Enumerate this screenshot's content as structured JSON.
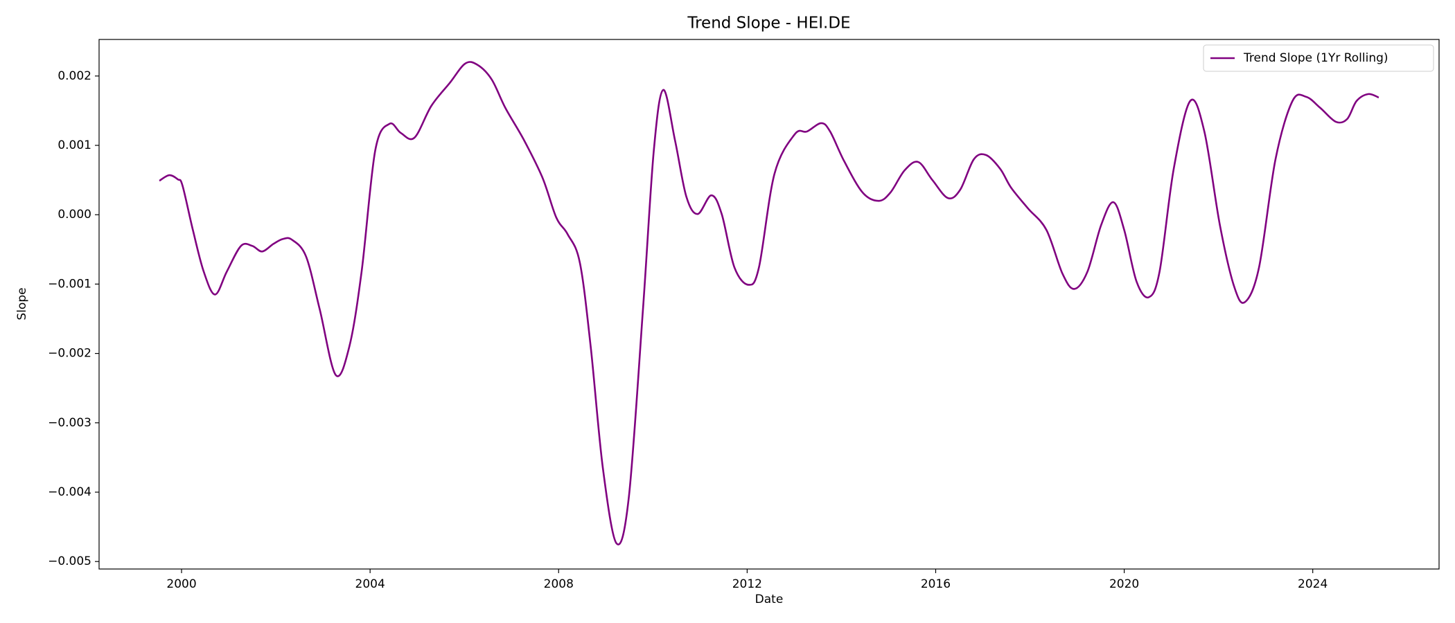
{
  "chart_data": {
    "type": "line",
    "title": "Trend Slope - HEI.DE",
    "x_label": "Date",
    "y_label": "Slope",
    "x": [
      1999.53,
      1999.74,
      1999.92,
      2000.02,
      2000.24,
      2000.47,
      2000.71,
      2000.96,
      2001.26,
      2001.5,
      2001.71,
      2001.95,
      2002.15,
      2002.34,
      2002.64,
      2002.93,
      2003.27,
      2003.56,
      2003.82,
      2004.11,
      2004.41,
      2004.65,
      2004.94,
      2005.3,
      2005.69,
      2006.02,
      2006.28,
      2006.58,
      2006.87,
      2007.27,
      2007.66,
      2007.95,
      2008.19,
      2008.45,
      2008.68,
      2008.94,
      2009.23,
      2009.49,
      2009.79,
      2010.02,
      2010.22,
      2010.47,
      2010.71,
      2010.95,
      2011.24,
      2011.46,
      2011.73,
      2012.03,
      2012.25,
      2012.58,
      2013.01,
      2013.27,
      2013.57,
      2013.76,
      2014.06,
      2014.45,
      2014.79,
      2015.04,
      2015.34,
      2015.63,
      2015.93,
      2016.26,
      2016.52,
      2016.81,
      2017.07,
      2017.37,
      2017.6,
      2017.96,
      2018.35,
      2018.69,
      2018.94,
      2019.22,
      2019.51,
      2019.77,
      2020.0,
      2020.26,
      2020.52,
      2020.75,
      2021.05,
      2021.4,
      2021.7,
      2022.03,
      2022.33,
      2022.56,
      2022.86,
      2023.21,
      2023.57,
      2023.86,
      2024.16,
      2024.49,
      2024.73,
      2024.93,
      2025.18,
      2025.4
    ],
    "series": [
      {
        "name": "Trend Slope (1Yr Rolling)",
        "color": "#800080",
        "values": [
          0.00049,
          0.00057,
          0.00051,
          0.00042,
          -0.00022,
          -0.00082,
          -0.00115,
          -0.00082,
          -0.00045,
          -0.00045,
          -0.00053,
          -0.00042,
          -0.00035,
          -0.00036,
          -0.0006,
          -0.00136,
          -0.00231,
          -0.0019,
          -0.00082,
          0.00093,
          0.00131,
          0.00118,
          0.00111,
          0.00157,
          0.0019,
          0.00218,
          0.00216,
          0.00195,
          0.00154,
          0.00107,
          0.00053,
          -4e-05,
          -0.00028,
          -0.00069,
          -0.0019,
          -0.00366,
          -0.00474,
          -0.00407,
          -0.00136,
          0.00093,
          0.0018,
          0.00107,
          0.00026,
          1e-05,
          0.00028,
          1e-05,
          -0.00076,
          -0.00101,
          -0.00076,
          0.00059,
          0.00116,
          0.0012,
          0.00132,
          0.0012,
          0.00077,
          0.00032,
          0.0002,
          0.00032,
          0.00064,
          0.00076,
          0.0005,
          0.00024,
          0.00036,
          0.0008,
          0.00086,
          0.00066,
          0.00039,
          9e-05,
          -0.00022,
          -0.00085,
          -0.00107,
          -0.00082,
          -0.00015,
          0.00018,
          -0.00022,
          -0.00096,
          -0.00119,
          -0.00082,
          0.00066,
          0.00164,
          0.0012,
          -0.00015,
          -0.00103,
          -0.00126,
          -0.00076,
          0.0008,
          0.00164,
          0.0017,
          0.00154,
          0.00134,
          0.00138,
          0.00164,
          0.00174,
          0.00169
        ]
      }
    ],
    "xlim": [
      1998.25,
      2026.68
    ],
    "xticks": [
      2000,
      2004,
      2008,
      2012,
      2016,
      2020,
      2024
    ],
    "ylim": [
      -0.005108,
      0.002527
    ],
    "yticks": [
      {
        "value": -0.005,
        "label": "−0.005"
      },
      {
        "value": -0.004,
        "label": "−0.004"
      },
      {
        "value": -0.003,
        "label": "−0.003"
      },
      {
        "value": -0.002,
        "label": "−0.002"
      },
      {
        "value": -0.001,
        "label": "−0.001"
      },
      {
        "value": 0,
        "label": "0.000"
      },
      0.001,
      0.002
    ],
    "legend": "upper right",
    "grid": false
  }
}
